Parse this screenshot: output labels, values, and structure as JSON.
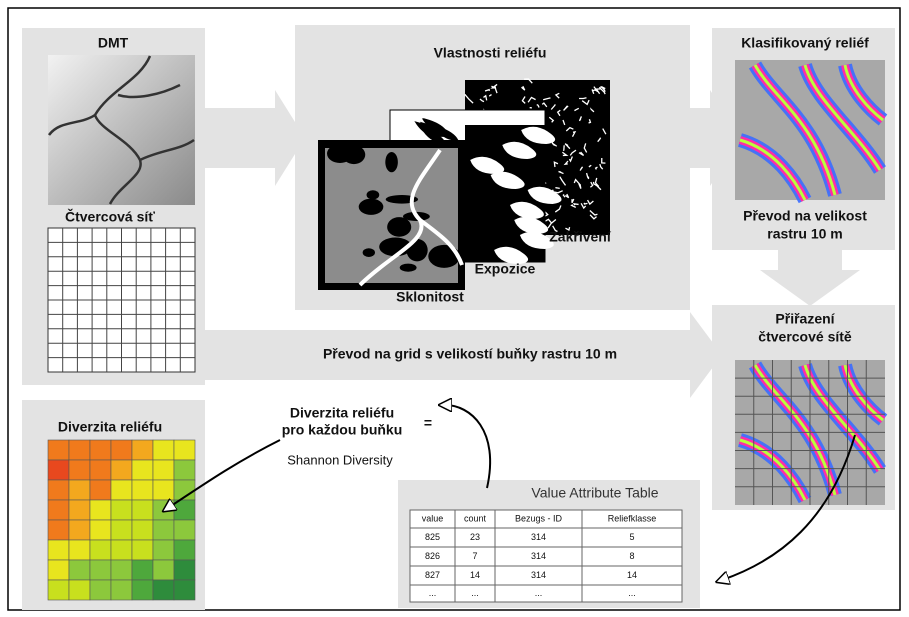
{
  "left": {
    "dmt_label": "DMT",
    "grid_label": "Čtvercová síť"
  },
  "properties": {
    "title": "Vlastnosti reliéfu",
    "layers": [
      "Zakřivení",
      "Expozice",
      "Sklonitost"
    ]
  },
  "classified": {
    "title": "Klasifikovaný reliéf",
    "note": [
      "Převod na velikost",
      "rastru 10 m"
    ]
  },
  "grid_conversion": "Převod na grid s velikostí buňky rastru 10 m",
  "assignment": {
    "title": [
      "Přiřazení",
      "čtvercové sítě"
    ]
  },
  "formula": {
    "lines": [
      "Diverzita reliéfu",
      "pro každou buňku"
    ],
    "equals": "=",
    "method": "Shannon Diversity"
  },
  "table": {
    "title": "Value Attribute Table",
    "columns": [
      "value",
      "count",
      "Bezugs - ID",
      "Reliefklasse"
    ],
    "rows": [
      [
        "825",
        "23",
        "314",
        "5"
      ],
      [
        "826",
        "7",
        "314",
        "8"
      ],
      [
        "827",
        "14",
        "314",
        "14"
      ],
      [
        "...",
        "...",
        "...",
        "..."
      ]
    ]
  },
  "diversity": {
    "title": "Diverzita reliéfu"
  }
}
